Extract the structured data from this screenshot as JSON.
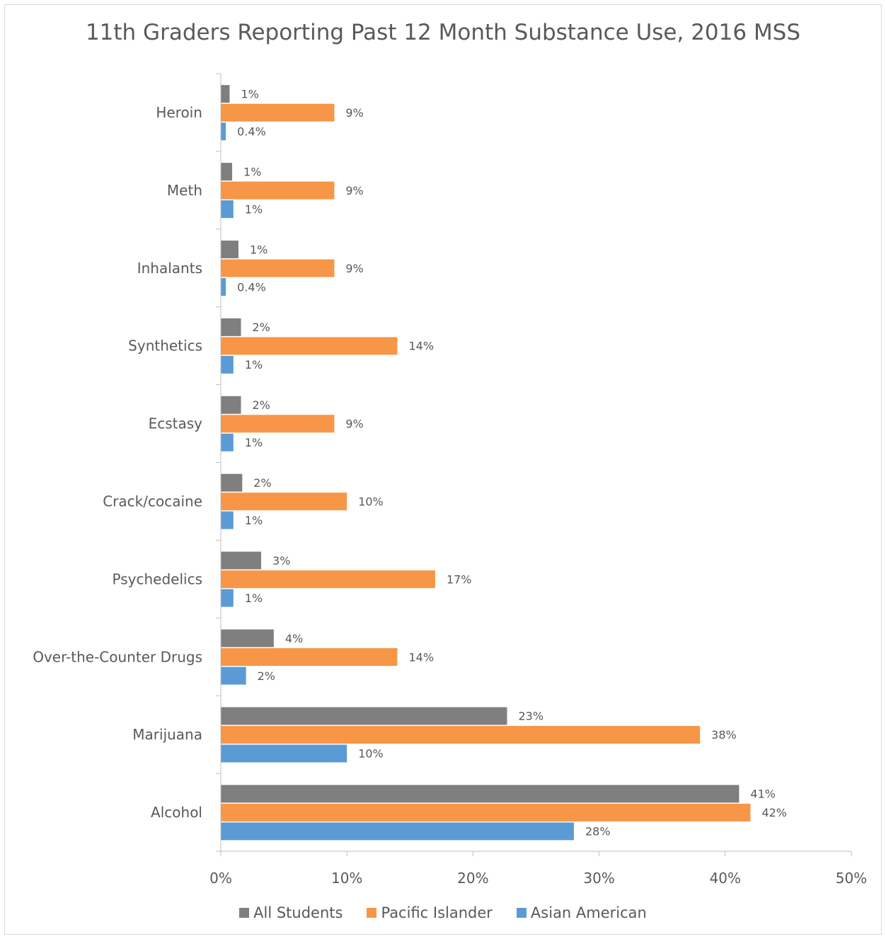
{
  "chart_data": {
    "type": "bar",
    "orientation": "horizontal",
    "title": "11th Graders Reporting Past 12 Month Substance Use, 2016 MSS",
    "categories": [
      "Heroin",
      "Meth",
      "Inhalants",
      "Synthetics",
      "Ecstasy",
      "Crack/cocaine",
      "Psychedelics",
      "Over-the-Counter Drugs",
      "Marijuana",
      "Alcohol"
    ],
    "series": [
      {
        "name": "All Students",
        "color": "#7f7f7f",
        "values": [
          0.7,
          0.9,
          1.4,
          1.6,
          1.6,
          1.7,
          3.2,
          4.2,
          22.7,
          41.1
        ],
        "labels": [
          "1%",
          "1%",
          "1%",
          "2%",
          "2%",
          "2%",
          "3%",
          "4%",
          "23%",
          "41%"
        ]
      },
      {
        "name": "Pacific Islander",
        "color": "#f79646",
        "values": [
          9.0,
          9.0,
          9.0,
          14.0,
          9.0,
          10.0,
          17.0,
          14.0,
          38.0,
          42.0
        ],
        "labels": [
          "9%",
          "9%",
          "9%",
          "14%",
          "9%",
          "10%",
          "17%",
          "14%",
          "38%",
          "42%"
        ]
      },
      {
        "name": "Asian American",
        "color": "#5b9bd5",
        "values": [
          0.4,
          1.0,
          0.4,
          1.0,
          1.0,
          1.0,
          1.0,
          2.0,
          10.0,
          28.0
        ],
        "labels": [
          "0.4%",
          "1%",
          "0.4%",
          "1%",
          "1%",
          "1%",
          "1%",
          "2%",
          "10%",
          "28%"
        ]
      }
    ],
    "xlim": [
      0,
      50
    ],
    "xticks": [
      0,
      10,
      20,
      30,
      40,
      50
    ],
    "xtick_labels": [
      "0%",
      "10%",
      "20%",
      "30%",
      "40%",
      "50%"
    ],
    "grid": false,
    "legend_position": "bottom",
    "axis_color": "#bfbfbf",
    "text_color": "#595959"
  }
}
